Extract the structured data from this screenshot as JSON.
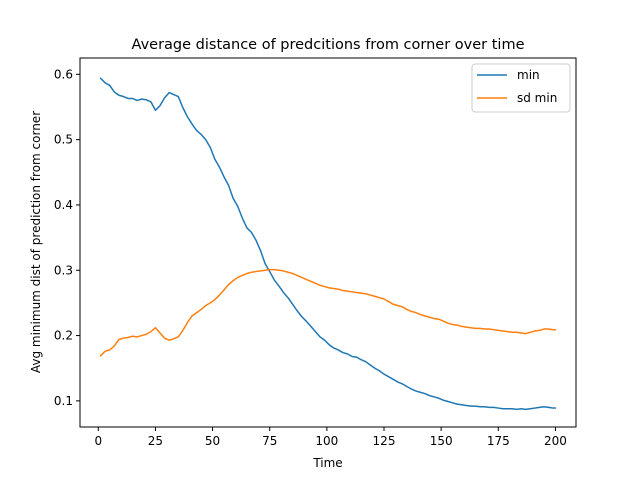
{
  "chart_data": {
    "type": "line",
    "title": "Average distance of predcitions from corner over time",
    "xlabel": "Time",
    "ylabel": "Avg minimum dist of prediction from corner",
    "xlim": [
      -8,
      209
    ],
    "ylim": [
      0.06,
      0.625
    ],
    "xticks": [
      0,
      25,
      50,
      75,
      100,
      125,
      150,
      175,
      200
    ],
    "yticks": [
      0.1,
      0.2,
      0.3,
      0.4,
      0.5,
      0.6
    ],
    "xtick_labels": [
      "0",
      "25",
      "50",
      "75",
      "100",
      "125",
      "150",
      "175",
      "200"
    ],
    "ytick_labels": [
      "0.1",
      "0.2",
      "0.3",
      "0.4",
      "0.5",
      "0.6"
    ],
    "grid": false,
    "legend_position": "top-right",
    "colors": {
      "min": "#1f77b4",
      "sd_min": "#ff7f0e"
    },
    "series": [
      {
        "name": "min",
        "x": [
          1,
          3,
          5,
          7,
          9,
          11,
          13,
          15,
          17,
          19,
          21,
          23,
          25,
          27,
          29,
          31,
          33,
          35,
          37,
          39,
          41,
          43,
          45,
          47,
          49,
          51,
          53,
          55,
          57,
          59,
          61,
          63,
          65,
          67,
          69,
          71,
          73,
          75,
          77,
          79,
          81,
          83,
          85,
          87,
          89,
          91,
          93,
          95,
          97,
          99,
          101,
          103,
          105,
          107,
          109,
          111,
          113,
          115,
          117,
          119,
          121,
          123,
          125,
          127,
          129,
          131,
          133,
          135,
          137,
          139,
          141,
          143,
          145,
          147,
          149,
          151,
          153,
          155,
          157,
          159,
          161,
          163,
          165,
          167,
          169,
          171,
          173,
          175,
          177,
          179,
          181,
          183,
          185,
          187,
          189,
          191,
          193,
          195,
          197,
          199,
          200
        ],
        "y": [
          0.594,
          0.587,
          0.583,
          0.573,
          0.568,
          0.566,
          0.563,
          0.563,
          0.56,
          0.562,
          0.561,
          0.558,
          0.545,
          0.552,
          0.564,
          0.572,
          0.569,
          0.566,
          0.549,
          0.535,
          0.524,
          0.514,
          0.508,
          0.5,
          0.488,
          0.47,
          0.458,
          0.443,
          0.43,
          0.41,
          0.398,
          0.38,
          0.365,
          0.358,
          0.346,
          0.33,
          0.31,
          0.298,
          0.285,
          0.276,
          0.266,
          0.258,
          0.248,
          0.238,
          0.229,
          0.222,
          0.214,
          0.206,
          0.198,
          0.193,
          0.186,
          0.181,
          0.178,
          0.174,
          0.172,
          0.168,
          0.167,
          0.163,
          0.16,
          0.155,
          0.15,
          0.146,
          0.141,
          0.137,
          0.133,
          0.129,
          0.126,
          0.122,
          0.118,
          0.115,
          0.113,
          0.111,
          0.108,
          0.106,
          0.104,
          0.101,
          0.099,
          0.097,
          0.095,
          0.094,
          0.093,
          0.092,
          0.092,
          0.091,
          0.091,
          0.09,
          0.09,
          0.089,
          0.088,
          0.088,
          0.088,
          0.087,
          0.088,
          0.087,
          0.088,
          0.089,
          0.09,
          0.091,
          0.09,
          0.089,
          0.089
        ]
      },
      {
        "name": "sd min",
        "x": [
          1,
          3,
          5,
          7,
          9,
          11,
          13,
          15,
          17,
          19,
          21,
          23,
          25,
          27,
          29,
          31,
          33,
          35,
          37,
          39,
          41,
          43,
          45,
          47,
          49,
          51,
          53,
          55,
          57,
          59,
          61,
          63,
          65,
          67,
          69,
          71,
          73,
          75,
          77,
          79,
          81,
          83,
          85,
          87,
          89,
          91,
          93,
          95,
          97,
          99,
          101,
          103,
          105,
          107,
          109,
          111,
          113,
          115,
          117,
          119,
          121,
          123,
          125,
          127,
          129,
          131,
          133,
          135,
          137,
          139,
          141,
          143,
          145,
          147,
          149,
          151,
          153,
          155,
          157,
          159,
          161,
          163,
          165,
          167,
          169,
          171,
          173,
          175,
          177,
          179,
          181,
          183,
          185,
          187,
          189,
          191,
          193,
          195,
          197,
          199,
          200
        ],
        "y": [
          0.169,
          0.176,
          0.178,
          0.184,
          0.194,
          0.196,
          0.197,
          0.199,
          0.198,
          0.2,
          0.202,
          0.206,
          0.212,
          0.204,
          0.196,
          0.193,
          0.195,
          0.198,
          0.208,
          0.22,
          0.23,
          0.235,
          0.24,
          0.246,
          0.25,
          0.255,
          0.262,
          0.27,
          0.278,
          0.284,
          0.289,
          0.292,
          0.295,
          0.297,
          0.298,
          0.299,
          0.3,
          0.301,
          0.301,
          0.3,
          0.299,
          0.297,
          0.295,
          0.292,
          0.289,
          0.286,
          0.283,
          0.28,
          0.277,
          0.275,
          0.273,
          0.272,
          0.271,
          0.269,
          0.268,
          0.267,
          0.266,
          0.265,
          0.264,
          0.262,
          0.26,
          0.258,
          0.256,
          0.252,
          0.248,
          0.246,
          0.244,
          0.24,
          0.237,
          0.235,
          0.232,
          0.23,
          0.228,
          0.226,
          0.225,
          0.222,
          0.219,
          0.217,
          0.216,
          0.214,
          0.213,
          0.212,
          0.211,
          0.211,
          0.21,
          0.21,
          0.209,
          0.208,
          0.207,
          0.206,
          0.205,
          0.205,
          0.204,
          0.203,
          0.205,
          0.207,
          0.208,
          0.21,
          0.21,
          0.209,
          0.209
        ]
      }
    ]
  }
}
